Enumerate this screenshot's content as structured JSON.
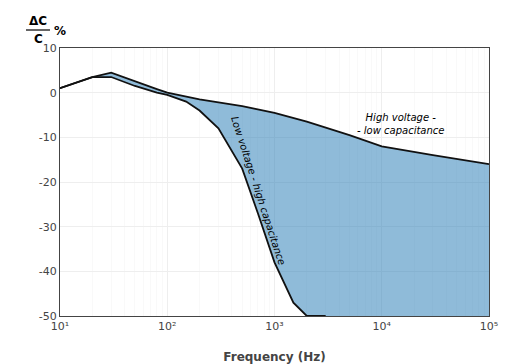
{
  "chart_data": {
    "type": "area",
    "xlabel": "Frequency (Hz)",
    "ylabel": {
      "numerator": "ΔC",
      "denominator": "C",
      "unit": "%"
    },
    "log": "x",
    "grid": true,
    "xlim": [
      10,
      100000
    ],
    "ylim": [
      -50,
      10
    ],
    "xticks": [
      {
        "value": 10,
        "label": "10¹"
      },
      {
        "value": 100,
        "label": "10²"
      },
      {
        "value": 1000,
        "label": "10³"
      },
      {
        "value": 10000,
        "label": "10⁴"
      },
      {
        "value": 100000,
        "label": "10⁵"
      }
    ],
    "yticks": [
      10,
      0,
      -10,
      -20,
      -30,
      -40,
      -50
    ],
    "series": [
      {
        "type": "line",
        "color": "#111111",
        "x": [
          10,
          15,
          20,
          30,
          50,
          80,
          100,
          200,
          500,
          1000,
          2000,
          5000,
          10000,
          30000,
          100000
        ],
        "values": [
          1.0,
          2.5,
          3.5,
          4.5,
          2.5,
          0.8,
          0.0,
          -1.5,
          -3.0,
          -4.5,
          -6.5,
          -9.5,
          -12.0,
          -14.0,
          -16.0
        ]
      },
      {
        "type": "line",
        "color": "#111111",
        "x": [
          10,
          15,
          20,
          30,
          50,
          80,
          100,
          150,
          200,
          300,
          500,
          700,
          1000,
          1500,
          2000,
          2500,
          3000
        ],
        "values": [
          1.0,
          2.5,
          3.5,
          3.5,
          1.5,
          0.0,
          -0.5,
          -2.0,
          -4.0,
          -8.0,
          -17.0,
          -27.0,
          -38.0,
          -47.0,
          -50.0,
          -50.0,
          -50.0
        ]
      }
    ],
    "annotations": [
      {
        "text": "High voltage -\n- low capacitance",
        "x": 15000,
        "y": -7
      },
      {
        "text": "Low voltage - high capacitance",
        "x": 700,
        "y": -22
      }
    ]
  }
}
